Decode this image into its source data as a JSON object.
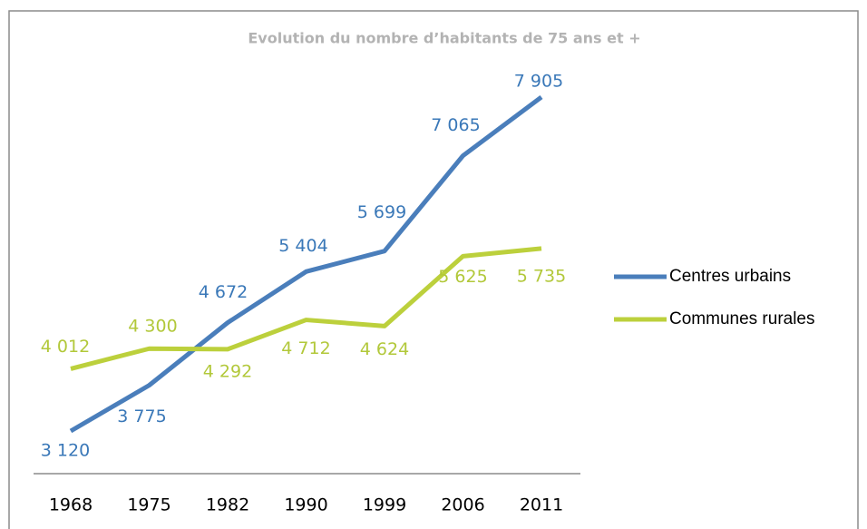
{
  "chart_data": {
    "type": "line",
    "title": "Evolution du nombre d’habitants de 75 ans et +",
    "categories": [
      "1968",
      "1975",
      "1982",
      "1990",
      "1999",
      "2006",
      "2011"
    ],
    "series": [
      {
        "name": "Centres urbains",
        "color": "#4a7ebb",
        "label_color": "#3a78b8",
        "values": [
          3120,
          3775,
          4672,
          5404,
          5699,
          7065,
          7905
        ],
        "value_labels": [
          "3 120",
          "3 775",
          "4 672",
          "5 404",
          "5 699",
          "7 065",
          "7 905"
        ]
      },
      {
        "name": "Communes rurales",
        "color": "#bcd03c",
        "label_color": "#b2c83a",
        "values": [
          4012,
          4300,
          4292,
          4712,
          4624,
          5625,
          5735
        ],
        "value_labels": [
          "4 012",
          "4 300",
          "4 292",
          "4 712",
          "4 624",
          "5 625",
          "5 735"
        ]
      }
    ]
  }
}
